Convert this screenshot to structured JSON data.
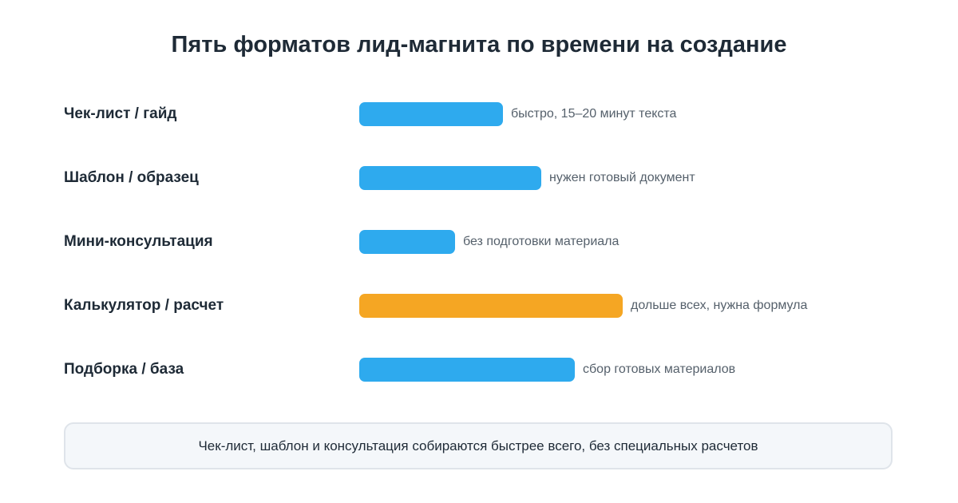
{
  "chart_data": {
    "type": "bar",
    "orientation": "horizontal",
    "title": "Пять форматов лид-магнита по времени на создание",
    "categories": [
      "Чек-лист / гайд",
      "Шаблон / образец",
      "Мини-консультация",
      "Калькулятор / расчет",
      "Подборка / база"
    ],
    "values": [
      3,
      3.8,
      2,
      5.5,
      4.5
    ],
    "value_max": 5.5,
    "notes": [
      "быстро, 15–20 минут текста",
      "нужен готовый документ",
      "без подготовки материала",
      "дольше всех, нужна формула",
      "сбор готовых материалов"
    ],
    "highlight_index": 3,
    "colors": {
      "default": "#2eaaee",
      "highlight": "#f5a623"
    },
    "grid": false,
    "legend": "none"
  },
  "summary": {
    "text": "Чек-лист, шаблон и консультация собираются быстрее всего, без специальных расчетов"
  }
}
